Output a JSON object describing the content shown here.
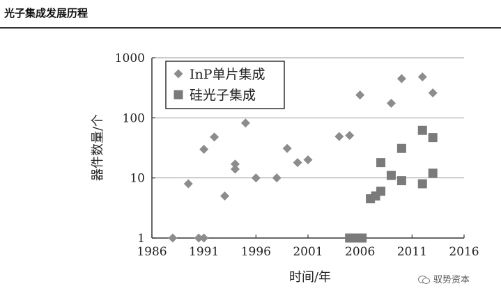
{
  "header": {
    "title": "光子集成发展历程"
  },
  "watermark": {
    "text": "驭势资本"
  },
  "chart_data": {
    "type": "scatter",
    "xlabel": "时间/年",
    "ylabel": "器件数量/个",
    "xlim": [
      1986,
      2016
    ],
    "ylim": [
      1,
      1000
    ],
    "yscale": "log",
    "x_ticks": [
      1986,
      1991,
      1996,
      2001,
      2006,
      2011,
      2016
    ],
    "y_ticks": [
      1,
      10,
      100,
      1000
    ],
    "x_tick_labels": [
      "1986",
      "1991",
      "1996",
      "2001",
      "2006",
      "2011",
      "2016"
    ],
    "y_tick_labels": [
      "1",
      "10",
      "100",
      "1000"
    ],
    "grid": "horizontal",
    "legend_position": "top-left",
    "series": [
      {
        "name": "InP单片集成",
        "marker": "diamond",
        "color": "#8c8c8c",
        "points": [
          [
            1988,
            1
          ],
          [
            1989.5,
            8
          ],
          [
            1990.5,
            1
          ],
          [
            1991,
            1
          ],
          [
            1991,
            30
          ],
          [
            1992,
            48
          ],
          [
            1993,
            5
          ],
          [
            1994,
            14
          ],
          [
            1994,
            17
          ],
          [
            1995,
            82
          ],
          [
            1996,
            10
          ],
          [
            1998,
            10
          ],
          [
            1999,
            31
          ],
          [
            2000,
            18
          ],
          [
            2001,
            20
          ],
          [
            2004,
            49
          ],
          [
            2005,
            51
          ],
          [
            2006,
            240
          ],
          [
            2009,
            175
          ],
          [
            2010,
            450
          ],
          [
            2012,
            480
          ],
          [
            2013,
            260
          ]
        ]
      },
      {
        "name": "硅光子集成",
        "marker": "square",
        "color": "#7a7a7a",
        "points": [
          [
            2005,
            1
          ],
          [
            2005.6,
            1
          ],
          [
            2006.2,
            1
          ],
          [
            2007,
            4.5
          ],
          [
            2007.5,
            5
          ],
          [
            2008,
            6
          ],
          [
            2008,
            18
          ],
          [
            2009,
            11
          ],
          [
            2010,
            9
          ],
          [
            2010,
            31
          ],
          [
            2012,
            8
          ],
          [
            2012,
            62
          ],
          [
            2013,
            47
          ],
          [
            2013,
            12
          ]
        ]
      }
    ]
  }
}
